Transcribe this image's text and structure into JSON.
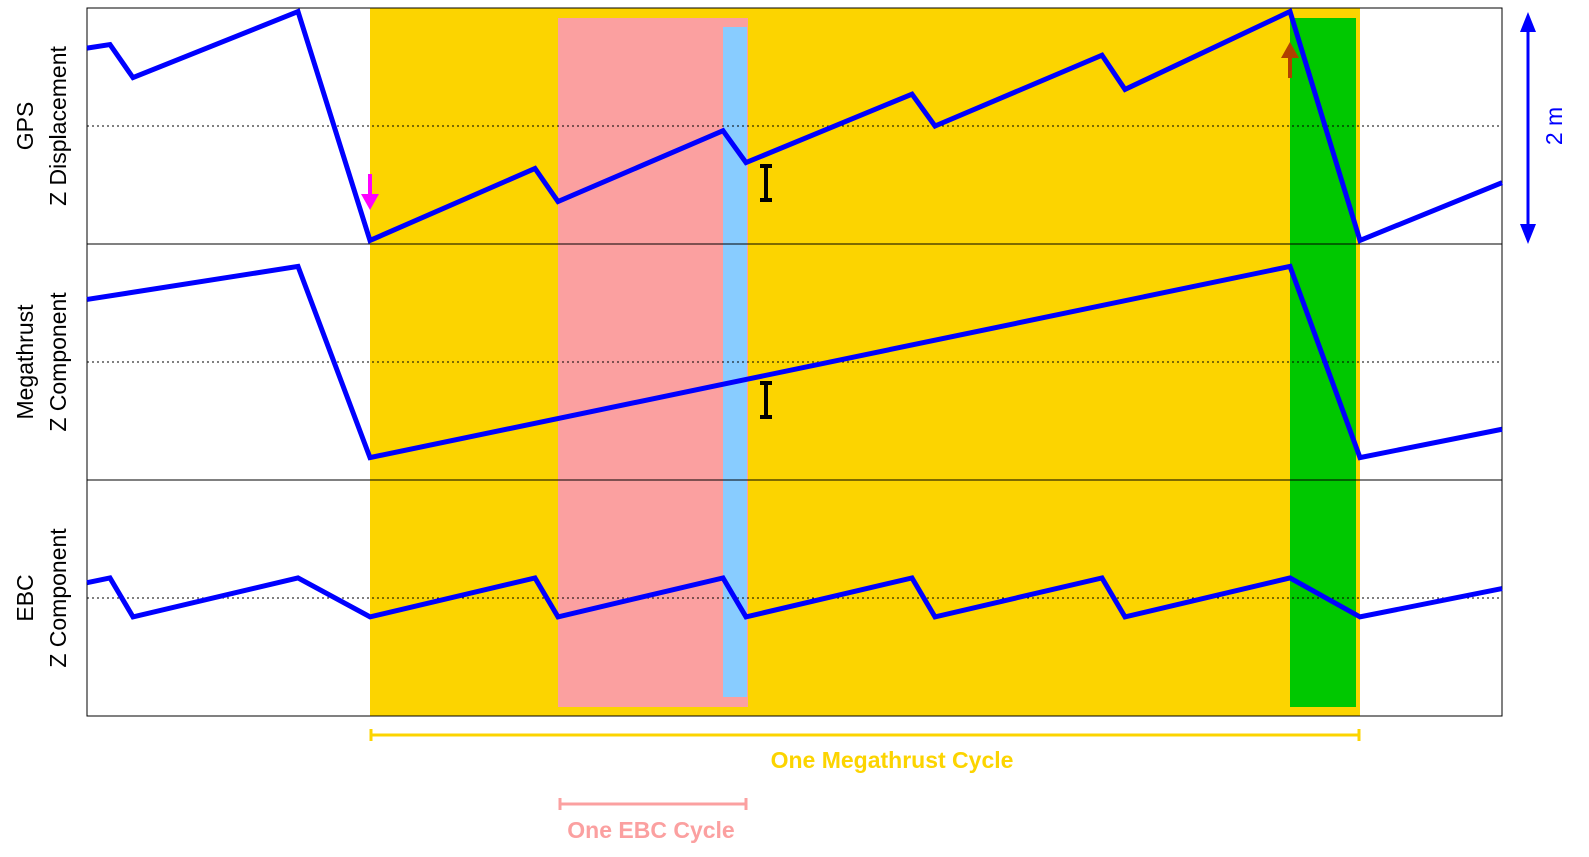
{
  "chart_data": [
    {
      "type": "line",
      "ylabel": [
        "GPS",
        "Z Displacement"
      ],
      "xlim": [
        0,
        1415
      ],
      "ylim": [
        -1,
        1
      ],
      "zero_line": true,
      "x": [
        0,
        23,
        46,
        211,
        283,
        448,
        471,
        636,
        659,
        825,
        848,
        1015,
        1038,
        1203,
        1273,
        1415
      ],
      "series": [
        {
          "color": "#0000ff",
          "values": [
            0.66,
            0.69,
            0.41,
            0.97,
            -0.97,
            -0.36,
            -0.64,
            -0.04,
            -0.31,
            0.27,
            0,
            0.6,
            0.31,
            0.97,
            -0.97,
            -0.48
          ]
        }
      ]
    },
    {
      "type": "line",
      "ylabel": [
        "Megathrust",
        "Z Component"
      ],
      "xlim": [
        0,
        1415
      ],
      "ylim": [
        -1,
        1
      ],
      "zero_line": true,
      "x": [
        0,
        211,
        283,
        1203,
        1273,
        1415
      ],
      "series": [
        {
          "color": "#0000ff",
          "values": [
            0.53,
            0.81,
            -0.81,
            0.81,
            -0.81,
            -0.57
          ]
        }
      ]
    },
    {
      "type": "line",
      "ylabel": [
        "EBC",
        "Z Component"
      ],
      "xlim": [
        0,
        1415
      ],
      "ylim": [
        -1,
        1
      ],
      "zero_line": true,
      "x": [
        0,
        23,
        46,
        211,
        283,
        448,
        471,
        636,
        659,
        825,
        848,
        1015,
        1038,
        1203,
        1273,
        1415
      ],
      "series": [
        {
          "color": "#0000ff",
          "values": [
            0.13,
            0.17,
            -0.16,
            0.17,
            -0.16,
            0.17,
            -0.16,
            0.17,
            -0.16,
            0.17,
            -0.16,
            0.17,
            -0.16,
            0.17,
            -0.16,
            0.08
          ]
        }
      ]
    }
  ],
  "scale_label": "2 m",
  "megathrust_label": "One Megathrust Cycle",
  "ebc_label": "One EBC Cycle"
}
